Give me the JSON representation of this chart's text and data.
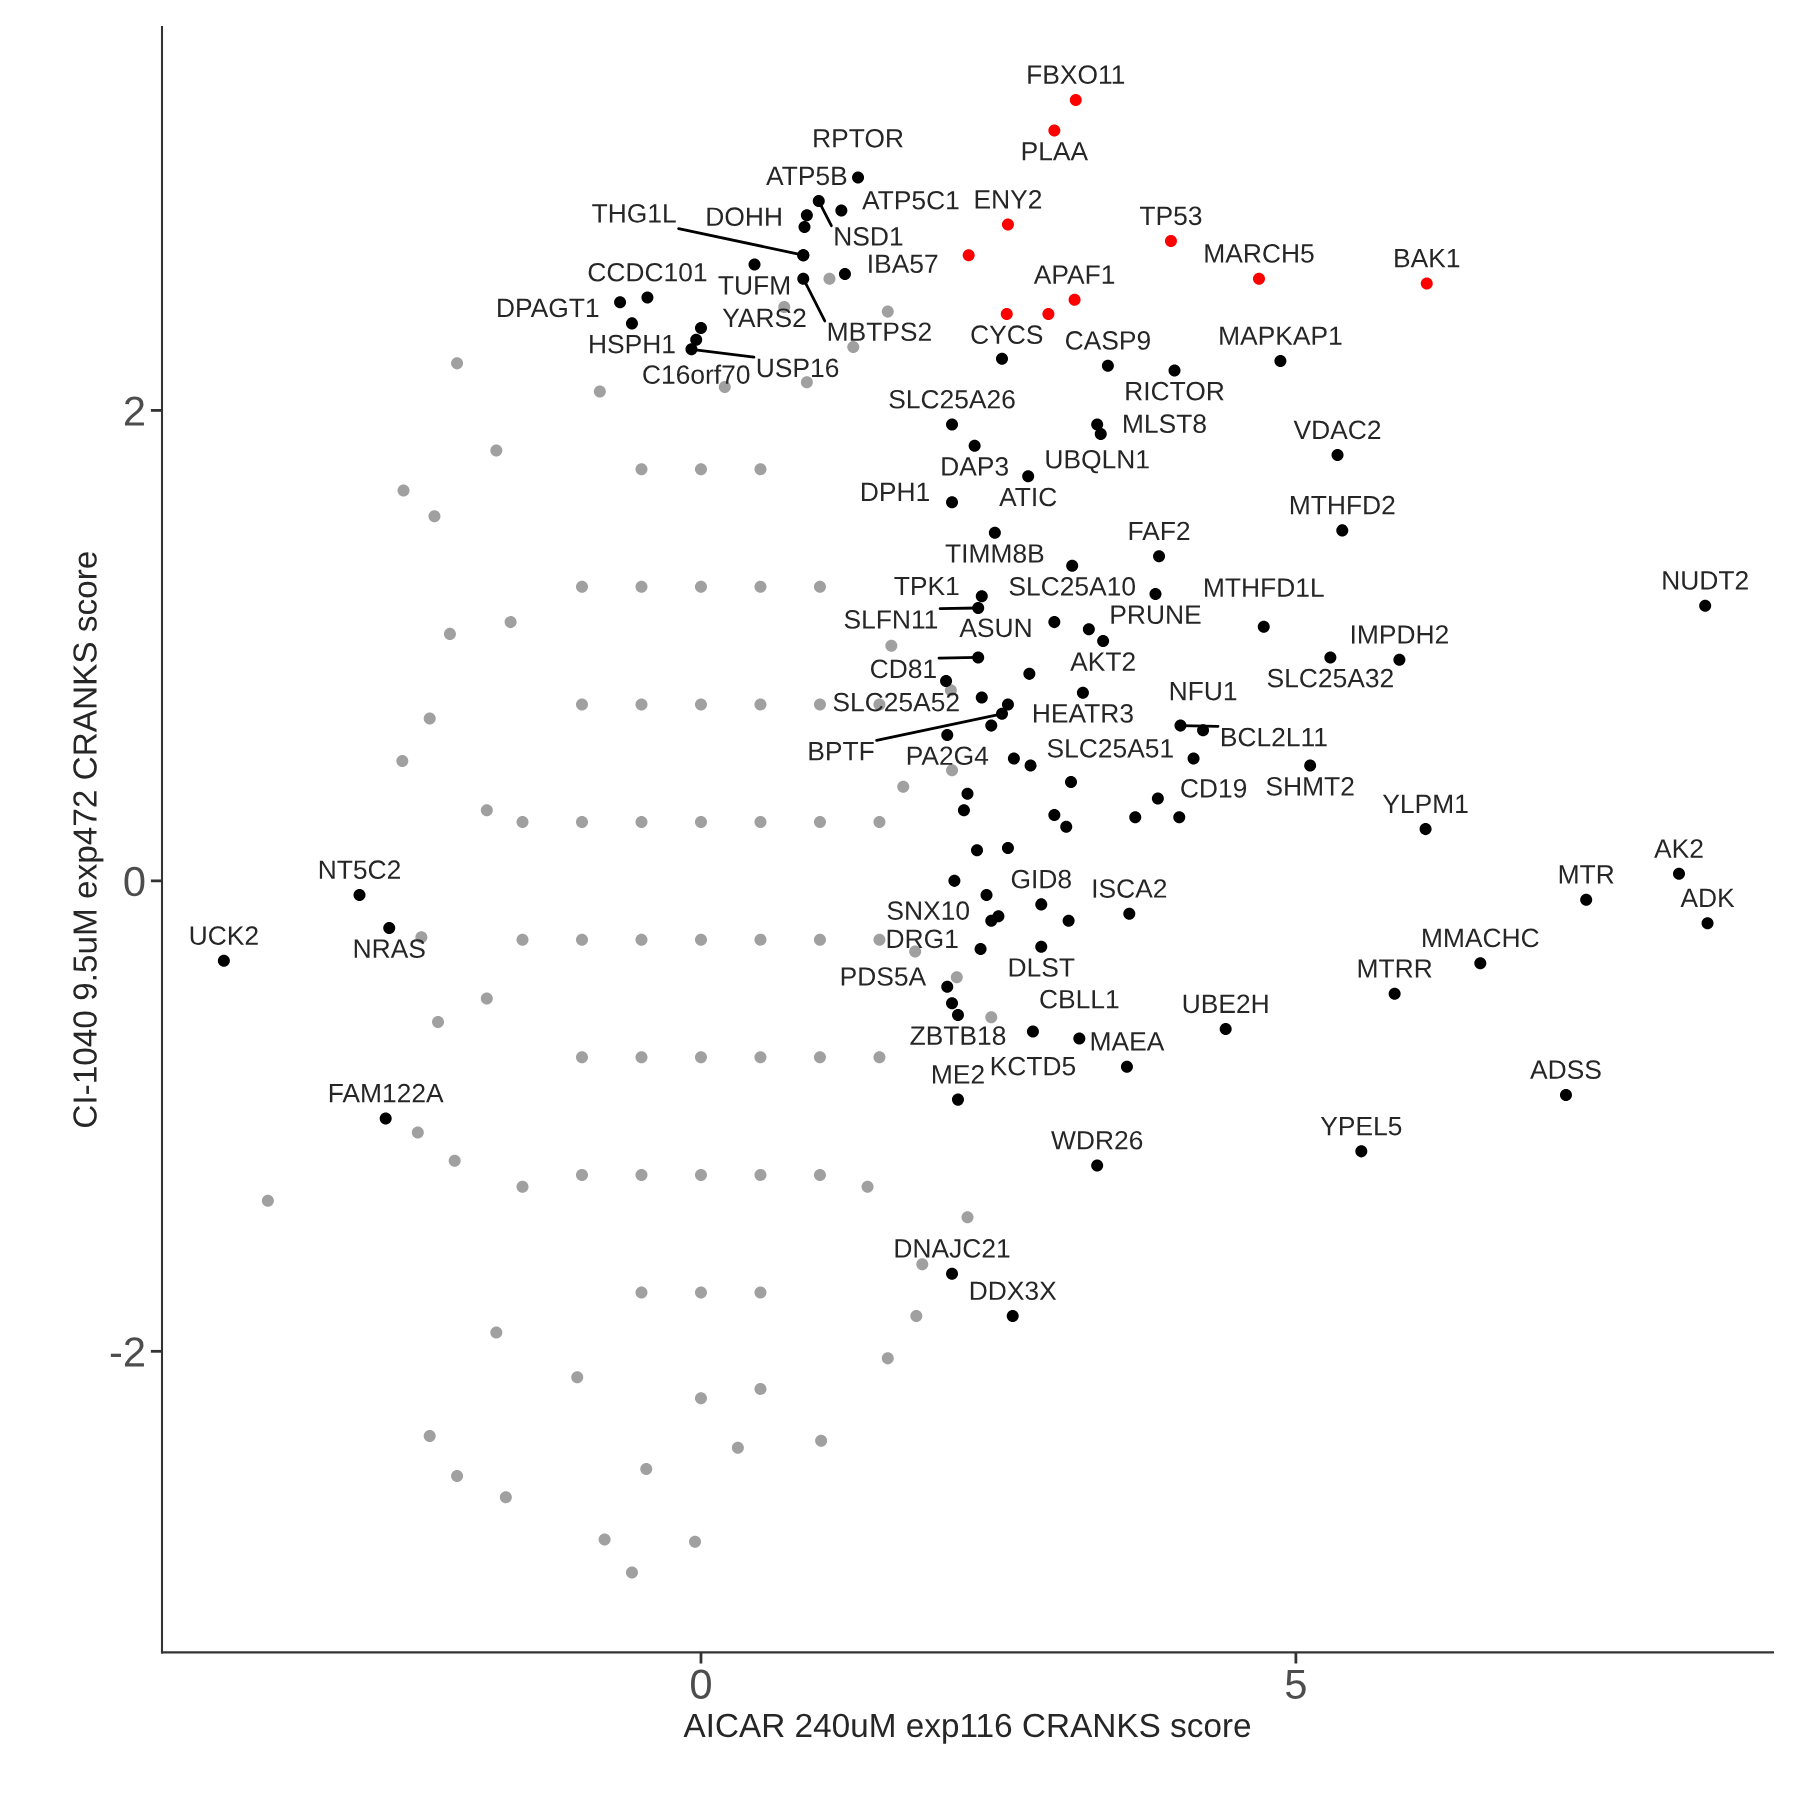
{
  "chart_data": {
    "type": "scatter",
    "xlabel": "AICAR 240uM exp116 CRANKS score",
    "ylabel": "CI-1040 9.5uM exp472 CRANKS score",
    "xlim": [
      -4.53,
      9.01
    ],
    "ylim": [
      -3.28,
      3.63
    ],
    "xticks": [
      0,
      5
    ],
    "yticks": [
      -2,
      0,
      2
    ],
    "grid": false,
    "marker": "circle",
    "series": [
      {
        "color": "#a0a0a0",
        "x": [
          -0.5,
          0,
          0.5,
          -1,
          -0.5,
          0,
          0.5,
          1,
          -1,
          -0.5,
          0,
          0.5,
          1,
          1.5,
          -1.5,
          -1,
          -0.5,
          0,
          0.5,
          1,
          1.5,
          -1.5,
          -1,
          -0.5,
          0,
          0.5,
          1,
          1.5,
          -1,
          -0.5,
          0,
          0.5,
          1,
          1.5,
          -1,
          -0.5,
          0,
          0.5,
          1,
          -0.5,
          0,
          0.5,
          -2.05,
          -2.5,
          -2.24,
          -2.11,
          -2.28,
          -2.51,
          -2.35,
          -2.21,
          -2.38,
          -2.07,
          -3.64,
          -2.28,
          -2.05,
          -1.64,
          -0.81,
          -0.58,
          -0.05,
          1.01,
          1.57,
          1.81,
          1.28,
          1.57,
          0.7,
          1.08,
          2.1,
          2.11,
          2.15,
          2.44,
          2.24,
          1.86,
          -1.72,
          -1.04,
          0.5,
          -1.72,
          -0.85,
          0.89,
          -0.46,
          0.31,
          -1.8,
          -1.8,
          1.7,
          1.8,
          1.6,
          -1.6,
          -1.5,
          1.4,
          0.2,
          0.0
        ],
        "values": [
          1.75,
          1.75,
          1.75,
          1.25,
          1.25,
          1.25,
          1.25,
          1.25,
          0.75,
          0.75,
          0.75,
          0.75,
          0.75,
          0.75,
          0.25,
          0.25,
          0.25,
          0.25,
          0.25,
          0.25,
          0.25,
          -0.25,
          -0.25,
          -0.25,
          -0.25,
          -0.25,
          -0.25,
          -0.25,
          -0.75,
          -0.75,
          -0.75,
          -0.75,
          -0.75,
          -0.75,
          -1.25,
          -1.25,
          -1.25,
          -1.25,
          -1.25,
          -1.75,
          -1.75,
          -1.75,
          2.2,
          1.66,
          1.55,
          1.05,
          0.69,
          0.51,
          -0.24,
          -0.6,
          -1.07,
          -1.19,
          -1.36,
          -2.36,
          -2.53,
          -2.62,
          -2.8,
          -2.94,
          -2.81,
          -2.38,
          -2.03,
          -1.85,
          2.27,
          2.42,
          2.44,
          2.56,
          0.81,
          0.47,
          -0.41,
          -0.58,
          -1.43,
          -1.63,
          -1.92,
          -2.11,
          -2.16,
          1.83,
          2.08,
          2.12,
          -2.5,
          -2.41,
          0.3,
          -0.5,
          0.4,
          -0.3,
          1.0,
          1.1,
          -1.3,
          -1.3,
          2.1,
          -2.2
        ]
      },
      {
        "color": "#000000",
        "x": [
          0.89,
          1.32,
          0.99,
          0.87,
          1.18,
          -0.45,
          0.45,
          1.21,
          -0.68,
          -0.58,
          0.0,
          -0.04,
          0.86,
          0.86,
          -0.08,
          3.42,
          3.98,
          4.87,
          2.11,
          3.33,
          3.36,
          2.3,
          5.35,
          2.11,
          2.75,
          2.47,
          3.12,
          3.85,
          3.82,
          2.97,
          5.39,
          8.44,
          2.36,
          2.33,
          3.38,
          4.73,
          5.87,
          5.29,
          2.33,
          2.06,
          3.21,
          4.22,
          2.07,
          2.53,
          4.03,
          4.14,
          5.12,
          3.84,
          6.09,
          8.22,
          7.44,
          8.46,
          6.55,
          5.83,
          7.27,
          5.55,
          2.86,
          3.6,
          2.44,
          2.86,
          4.41,
          2.07,
          2.35,
          2.16,
          3.18,
          3.58,
          2.79,
          2.16,
          3.33,
          2.11,
          2.62,
          -2.87,
          -4.01,
          -2.62,
          -2.65,
          2.53,
          0.86,
          2.44,
          2.63,
          2.77,
          3.11,
          2.97,
          3.07,
          3.65,
          4.02,
          2.24,
          2.21,
          2.32,
          2.58,
          2.13,
          2.4,
          2.76,
          2.36,
          2.58,
          3.26,
          3.09,
          2.5,
          2.11
        ],
        "values": [
          2.83,
          2.99,
          2.89,
          2.78,
          2.85,
          2.48,
          2.62,
          2.58,
          2.46,
          2.37,
          2.35,
          2.3,
          2.56,
          2.66,
          2.26,
          2.19,
          2.17,
          2.21,
          1.94,
          1.94,
          1.9,
          1.85,
          1.81,
          1.61,
          1.72,
          1.48,
          1.34,
          1.38,
          1.22,
          1.1,
          1.49,
          1.17,
          1.21,
          1.16,
          1.02,
          1.08,
          0.94,
          0.95,
          0.95,
          0.85,
          0.8,
          0.64,
          0.62,
          0.71,
          0.66,
          0.52,
          0.49,
          0.35,
          0.22,
          0.03,
          -0.08,
          -0.18,
          -0.35,
          -0.48,
          -0.91,
          -1.15,
          -0.1,
          -0.14,
          -0.17,
          -0.28,
          -0.63,
          -0.45,
          -0.29,
          -0.57,
          -0.67,
          -0.79,
          -0.64,
          -0.93,
          -1.21,
          -1.67,
          -1.85,
          -0.06,
          -0.34,
          -0.2,
          -1.01,
          2.22,
          2.66,
          0.66,
          0.52,
          0.49,
          0.42,
          0.28,
          0.23,
          0.27,
          0.27,
          0.37,
          0.3,
          0.13,
          0.14,
          0.0,
          -0.06,
          0.88,
          0.78,
          0.75,
          1.07,
          -0.17,
          -0.15,
          -0.52
        ],
        "value_labels": [
          "ATP5B",
          "RPTOR",
          "NSD1",
          "DOHH",
          "ATP5C1",
          "CCDC101",
          "TUFM",
          "IBA57",
          "DPAGT1",
          "HSPH1",
          "YARS2",
          "C16orf70",
          "MBTPS2",
          "THG1L",
          "USP16",
          "CASP9",
          "RICTOR",
          "MAPKAP1",
          "SLC25A26",
          "UBQLN1",
          "MLST8",
          "DAP3",
          "VDAC2",
          "DPH1",
          "ATIC",
          "TIMM8B",
          "SLC25A10",
          "FAF2",
          "PRUNE",
          "ASUN",
          "MTHFD2",
          "NUDT2",
          "TPK1",
          "SLFN11",
          "AKT2",
          "MTHFD1L",
          "IMPDH2",
          "SLC25A32",
          "CD81",
          "SLC25A52",
          "HEATR3",
          "NFU1",
          "PA2G4",
          "BPTF",
          "BCL2L11",
          "SLC25A51",
          "SHMT2",
          "CD19",
          "YLPM1",
          "AK2",
          "MTR",
          "ADK",
          "MMACHC",
          "MTRR",
          "ADSS",
          "YPEL5",
          "GID8",
          "ISCA2",
          "SNX10",
          "DLST",
          "UBE2H",
          "PDS5A",
          "DRG1",
          "ZBTB18",
          "CBLL1",
          "MAEA",
          "KCTD5",
          "ME2",
          "WDR26",
          "DNAJC21",
          "DDX3X",
          "NT5C2",
          "UCK2",
          "NRAS",
          "FAM122A",
          null,
          null,
          null,
          null,
          null,
          null,
          null,
          null,
          null,
          null,
          null,
          null,
          null,
          null,
          null,
          null,
          null,
          null,
          null,
          null,
          null,
          null,
          null
        ]
      },
      {
        "color": "#ff0000",
        "x": [
          3.15,
          2.97,
          2.58,
          3.95,
          3.14,
          4.69,
          6.1,
          2.57,
          2.25,
          2.92
        ],
        "values": [
          3.32,
          3.19,
          2.79,
          2.72,
          2.47,
          2.56,
          2.54,
          2.41,
          2.66,
          2.41
        ],
        "value_labels": [
          "FBXO11",
          "PLAA",
          "ENY2",
          "TP53",
          "APAF1",
          "MARCH5",
          "BAK1",
          "CYCS",
          null,
          null
        ]
      }
    ]
  }
}
